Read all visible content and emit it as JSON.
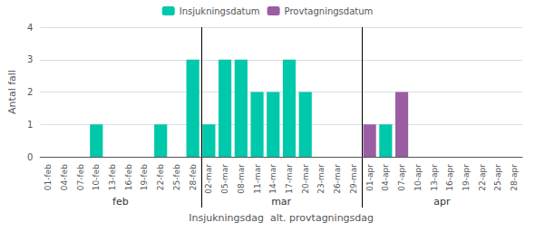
{
  "chart_data": {
    "type": "bar",
    "stacked": true,
    "categories": [
      "01-feb",
      "04-feb",
      "07-feb",
      "10-feb",
      "13-feb",
      "16-feb",
      "19-feb",
      "22-feb",
      "25-feb",
      "28-feb",
      "02-mar",
      "05-mar",
      "08-mar",
      "11-mar",
      "14-mar",
      "17-mar",
      "20-mar",
      "23-mar",
      "26-mar",
      "29-mar",
      "01-apr",
      "04-apr",
      "07-apr",
      "10-apr",
      "13-apr",
      "16-apr",
      "19-apr",
      "22-apr",
      "25-apr",
      "28-apr"
    ],
    "series": [
      {
        "name": "Insjukningsdatum",
        "color": "#00C8AA",
        "values": [
          0,
          0,
          0,
          1,
          0,
          0,
          0,
          1,
          0,
          3,
          1,
          3,
          3,
          2,
          2,
          3,
          2,
          0,
          0,
          0,
          0,
          1,
          0,
          0,
          0,
          0,
          0,
          0,
          0,
          0
        ]
      },
      {
        "name": "Provtagningsdatum",
        "color": "#9B5EA2",
        "values": [
          0,
          0,
          0,
          0,
          0,
          0,
          0,
          0,
          0,
          0,
          0,
          0,
          0,
          0,
          0,
          0,
          0,
          0,
          0,
          0,
          1,
          0,
          2,
          0,
          0,
          0,
          0,
          0,
          0,
          0
        ]
      }
    ],
    "x_label": "Insjukningsdag  alt. provtagningsdag",
    "y_label": "Antal fall",
    "annotations": [
      "feb",
      "mar",
      "apr"
    ],
    "ylim": [
      0,
      4
    ],
    "yticks": [
      0,
      1,
      2,
      3,
      4
    ],
    "grid": true,
    "legend": "top"
  }
}
